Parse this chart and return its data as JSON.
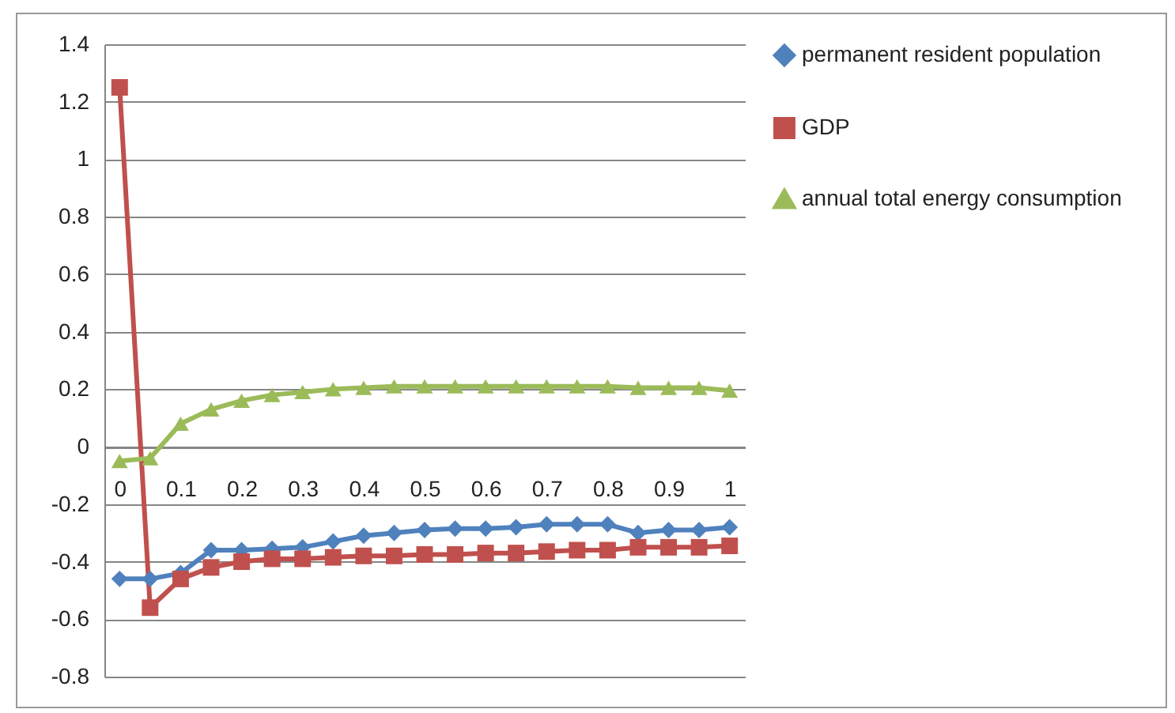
{
  "chart_data": {
    "type": "line",
    "categories": [
      "0",
      null,
      "0.1",
      null,
      "0.2",
      null,
      "0.3",
      null,
      "0.4",
      null,
      "0.5",
      null,
      "0.6",
      null,
      "0.7",
      null,
      "0.8",
      null,
      "0.9",
      null,
      "1"
    ],
    "series": [
      {
        "name": "permanent resident population",
        "color": "#4f81bd",
        "marker": "diamond",
        "values": [
          -0.46,
          -0.46,
          -0.44,
          -0.36,
          -0.36,
          -0.355,
          -0.35,
          -0.33,
          -0.31,
          -0.3,
          -0.29,
          -0.285,
          -0.285,
          -0.28,
          -0.27,
          -0.27,
          -0.27,
          -0.3,
          -0.29,
          -0.29,
          -0.28
        ]
      },
      {
        "name": "GDP",
        "color": "#c0504d",
        "marker": "square",
        "values": [
          1.25,
          -0.56,
          -0.46,
          -0.42,
          -0.4,
          -0.39,
          -0.39,
          -0.385,
          -0.38,
          -0.38,
          -0.375,
          -0.375,
          -0.37,
          -0.37,
          -0.365,
          -0.36,
          -0.36,
          -0.35,
          -0.35,
          -0.35,
          -0.345
        ]
      },
      {
        "name": "annual total energy consumption",
        "color": "#9bbb59",
        "marker": "triangle",
        "values": [
          -0.05,
          -0.04,
          0.08,
          0.13,
          0.16,
          0.18,
          0.19,
          0.2,
          0.205,
          0.21,
          0.21,
          0.21,
          0.21,
          0.21,
          0.21,
          0.21,
          0.21,
          0.205,
          0.205,
          0.205,
          0.195
        ]
      }
    ],
    "ylim": [
      -0.8,
      1.4
    ],
    "yticks": [
      -0.8,
      -0.6,
      -0.4,
      -0.2,
      0,
      0.2,
      0.4,
      0.6,
      0.8,
      1,
      1.2,
      1.4
    ],
    "grid": "y",
    "legend": "right",
    "line_style": "solid"
  }
}
